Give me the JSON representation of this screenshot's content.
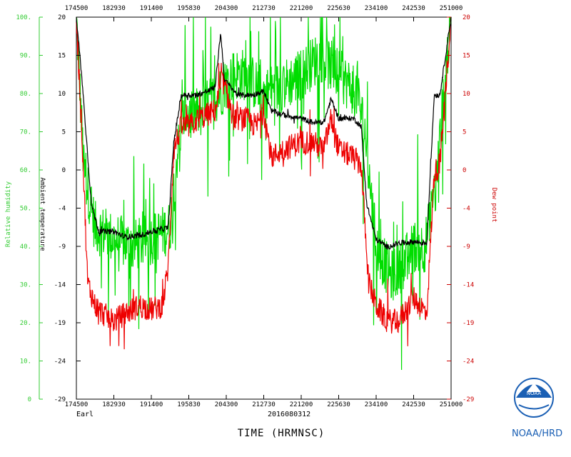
{
  "chart_data": {
    "type": "line",
    "xlabel": "TIME (HRMNSC)",
    "storm": "Earl",
    "date_label": "2016080312",
    "x_ticks": [
      "174500",
      "182930",
      "191400",
      "195830",
      "204300",
      "212730",
      "221200",
      "225630",
      "234100",
      "242530",
      "251000"
    ],
    "rh_axis": {
      "label": "Relative humidity",
      "ticks": [
        "0",
        "10.",
        "20.",
        "30.",
        "40.",
        "50.",
        "60.",
        "70.",
        "80.",
        "90.",
        "100."
      ],
      "ylim": [
        0,
        100
      ]
    },
    "t_axis": {
      "label": "Ambient temperature",
      "ticks": [
        "-29",
        "-24",
        "-19",
        "-14",
        "-9",
        "-4",
        "0",
        "5",
        "10",
        "15",
        "20"
      ],
      "ylim": [
        -29,
        20
      ]
    },
    "td_axis": {
      "label": "Dew point",
      "ticks": [
        "-29",
        "-24",
        "-19",
        "-14",
        "-9",
        "-4",
        "0",
        "5",
        "10",
        "15",
        "20"
      ]
    },
    "series": [
      {
        "color": "#00dd00",
        "profile": [
          [
            0,
            100
          ],
          [
            0.02,
            60
          ],
          [
            0.05,
            45
          ],
          [
            0.1,
            42
          ],
          [
            0.15,
            40
          ],
          [
            0.2,
            42
          ],
          [
            0.25,
            45
          ],
          [
            0.27,
            65
          ],
          [
            0.29,
            75
          ],
          [
            0.33,
            75
          ],
          [
            0.38,
            80
          ],
          [
            0.42,
            85
          ],
          [
            0.45,
            85
          ],
          [
            0.5,
            80
          ],
          [
            0.55,
            82
          ],
          [
            0.6,
            85
          ],
          [
            0.65,
            90
          ],
          [
            0.7,
            85
          ],
          [
            0.75,
            80
          ],
          [
            0.77,
            70
          ],
          [
            0.8,
            40
          ],
          [
            0.84,
            32
          ],
          [
            0.87,
            35
          ],
          [
            0.9,
            40
          ],
          [
            0.93,
            40
          ],
          [
            0.96,
            55
          ],
          [
            0.98,
            80
          ],
          [
            1,
            100
          ]
        ]
      },
      {
        "color": "#000000",
        "profile": [
          [
            0,
            20
          ],
          [
            0.015,
            12
          ],
          [
            0.04,
            -4
          ],
          [
            0.06,
            -7.5
          ],
          [
            0.1,
            -7.5
          ],
          [
            0.13,
            -8.2
          ],
          [
            0.17,
            -8
          ],
          [
            0.2,
            -7.5
          ],
          [
            0.245,
            -7
          ],
          [
            0.26,
            4
          ],
          [
            0.28,
            10
          ],
          [
            0.32,
            10
          ],
          [
            0.35,
            10.5
          ],
          [
            0.37,
            11
          ],
          [
            0.385,
            18
          ],
          [
            0.395,
            12
          ],
          [
            0.43,
            10
          ],
          [
            0.47,
            10
          ],
          [
            0.5,
            10.5
          ],
          [
            0.52,
            8
          ],
          [
            0.55,
            7.5
          ],
          [
            0.6,
            7
          ],
          [
            0.63,
            6.5
          ],
          [
            0.66,
            6.5
          ],
          [
            0.68,
            9.5
          ],
          [
            0.7,
            7
          ],
          [
            0.74,
            7
          ],
          [
            0.76,
            6
          ],
          [
            0.775,
            -4
          ],
          [
            0.8,
            -8.5
          ],
          [
            0.83,
            -9.5
          ],
          [
            0.86,
            -9
          ],
          [
            0.9,
            -8.8
          ],
          [
            0.935,
            -9
          ],
          [
            0.955,
            10
          ],
          [
            0.97,
            10
          ],
          [
            1,
            20
          ]
        ]
      },
      {
        "color": "#ee0000",
        "profile": [
          [
            0,
            20
          ],
          [
            0.015,
            5
          ],
          [
            0.03,
            -14
          ],
          [
            0.05,
            -17
          ],
          [
            0.07,
            -18
          ],
          [
            0.1,
            -19
          ],
          [
            0.13,
            -18
          ],
          [
            0.17,
            -17
          ],
          [
            0.2,
            -17.5
          ],
          [
            0.23,
            -17
          ],
          [
            0.245,
            -12
          ],
          [
            0.26,
            3
          ],
          [
            0.28,
            6
          ],
          [
            0.3,
            6
          ],
          [
            0.33,
            7
          ],
          [
            0.37,
            8
          ],
          [
            0.39,
            12
          ],
          [
            0.42,
            7
          ],
          [
            0.45,
            7
          ],
          [
            0.48,
            6
          ],
          [
            0.5,
            8
          ],
          [
            0.52,
            2
          ],
          [
            0.55,
            3
          ],
          [
            0.6,
            4
          ],
          [
            0.63,
            4
          ],
          [
            0.66,
            3
          ],
          [
            0.68,
            7
          ],
          [
            0.7,
            3
          ],
          [
            0.74,
            2
          ],
          [
            0.76,
            1
          ],
          [
            0.78,
            -14
          ],
          [
            0.8,
            -17
          ],
          [
            0.83,
            -19
          ],
          [
            0.86,
            -19
          ],
          [
            0.9,
            -16
          ],
          [
            0.935,
            -18
          ],
          [
            0.955,
            0
          ],
          [
            0.97,
            1
          ],
          [
            1,
            20
          ]
        ]
      }
    ]
  },
  "logo": {
    "org_label": "NOAA/HRD",
    "emblem_text": "NOAA"
  }
}
